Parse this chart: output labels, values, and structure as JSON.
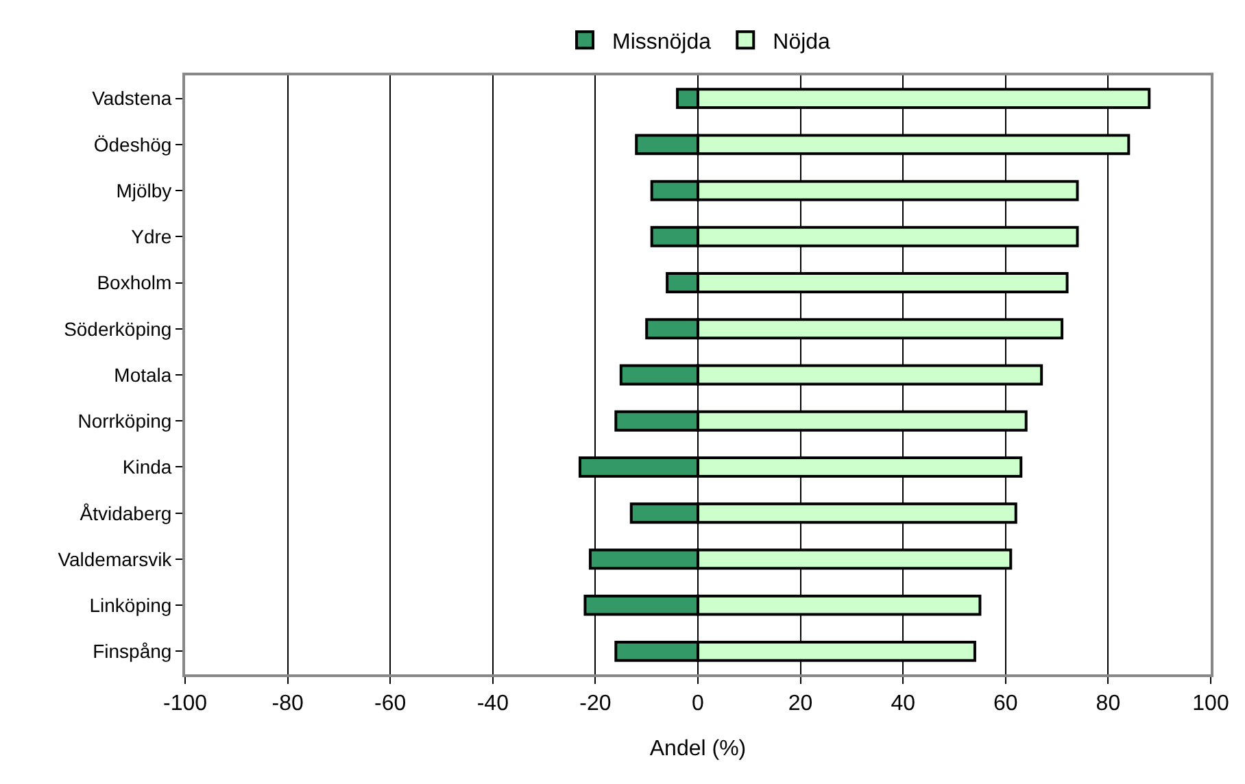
{
  "chart_data": {
    "type": "bar",
    "orientation": "horizontal",
    "stacked": true,
    "xlabel": "Andel (%)",
    "categories": [
      "Vadstena",
      "Ödeshög",
      "Mjölby",
      "Ydre",
      "Boxholm",
      "Söderköping",
      "Motala",
      "Norrköping",
      "Kinda",
      "Åtvidaberg",
      "Valdemarsvik",
      "Linköping",
      "Finspång"
    ],
    "series": [
      {
        "name": "Missnöjda",
        "color": "#339966",
        "values": [
          -4,
          -12,
          -9,
          -9,
          -6,
          -10,
          -15,
          -16,
          -23,
          -13,
          -21,
          -22,
          -16
        ]
      },
      {
        "name": "Nöjda",
        "color": "#ccffcc",
        "values": [
          88,
          84,
          74,
          74,
          72,
          71,
          67,
          64,
          63,
          62,
          61,
          55,
          54
        ]
      }
    ],
    "xlim": [
      -100,
      100
    ],
    "xticks": [
      -100,
      -80,
      -60,
      -40,
      -20,
      0,
      20,
      40,
      60,
      80,
      100
    ],
    "grid": "x",
    "legend": "top"
  }
}
